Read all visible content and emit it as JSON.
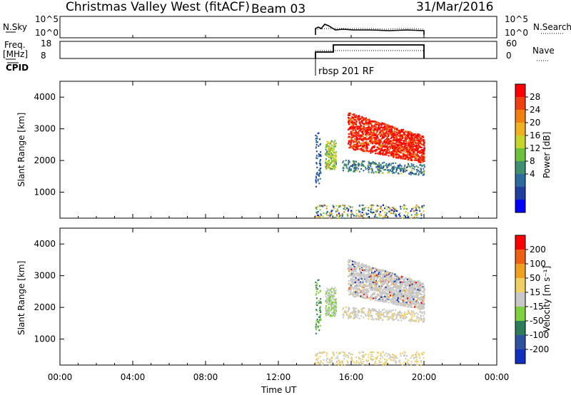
{
  "header": {
    "site": "Christmas Valley West (fitACF)",
    "beam": "Beam 03",
    "date": "31/Mar/2016"
  },
  "top_panel": {
    "left_label": "N.Sky",
    "left_ticks": [
      "10^5",
      "10^0"
    ],
    "right_ticks": [
      "10^5",
      "10^0"
    ],
    "right_label": "N.Search"
  },
  "freq_panel": {
    "left_label_1": "Freq.",
    "left_label_2": "[MHz]",
    "left_ticks": [
      "18",
      "8"
    ],
    "right_ticks": [
      "60",
      "0"
    ],
    "right_label": "Nave"
  },
  "cpid": {
    "label": "CPID",
    "program": "rbsp 201 RF"
  },
  "x_axis": {
    "ticks": [
      "00:00",
      "04:00",
      "08:00",
      "12:00",
      "16:00",
      "20:00",
      "00:00"
    ],
    "label": "Time UT"
  },
  "power_panel": {
    "ylabel": "Slant Range [km]",
    "yticks": [
      "4000",
      "3000",
      "2000",
      "1000"
    ],
    "colorbar_label": "Power [dB]",
    "colorbar_ticks": [
      "28",
      "24",
      "20",
      "16",
      "12",
      "8",
      "4"
    ],
    "colors": [
      "#0000ff",
      "#1e3fa0",
      "#2c6b9c",
      "#3f8f70",
      "#6fbf3f",
      "#c8d42a",
      "#f0b020",
      "#f08010",
      "#f04010",
      "#ff0000"
    ]
  },
  "velocity_panel": {
    "ylabel": "Slant Range [km]",
    "yticks": [
      "4000",
      "3000",
      "2000",
      "1000"
    ],
    "colorbar_label": "Velocity [m s⁻¹]",
    "colorbar_ticks": [
      "200",
      "100",
      "50",
      "15",
      "-15",
      "-50",
      "-100",
      "-200"
    ],
    "colors": [
      "#1030c0",
      "#3050a0",
      "#2e7d5a",
      "#7fd040",
      "#c8c8c8",
      "#f0d060",
      "#f0a020",
      "#f06010",
      "#ff0000"
    ]
  },
  "chart_data": {
    "type": "heatmap",
    "x_range_hours": [
      0,
      24
    ],
    "y_range_km": [
      180,
      4500
    ],
    "grid": false,
    "scatter_regions": [
      {
        "t": [
          15.8,
          20.0
        ],
        "range_km": [
          1850,
          3600
        ],
        "power_db": 26
      },
      {
        "t": [
          14.7,
          15.1
        ],
        "range_km": [
          1800,
          2600
        ],
        "power_db": 14
      },
      {
        "t": [
          14.0,
          14.3
        ],
        "range_km": [
          1200,
          2900
        ],
        "power_db": 6
      },
      {
        "t": [
          14.0,
          20.0
        ],
        "range_km": [
          180,
          600
        ],
        "power_db": 10
      }
    ]
  }
}
